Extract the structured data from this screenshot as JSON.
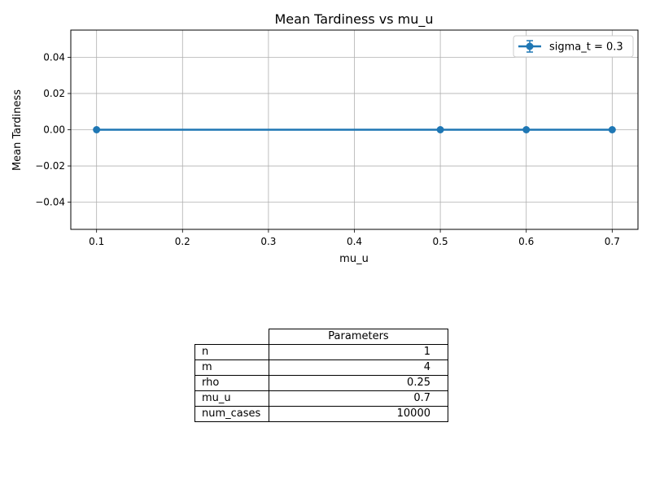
{
  "chart_data": {
    "type": "line",
    "title": "Mean Tardiness vs mu_u",
    "xlabel": "mu_u",
    "ylabel": "Mean Tardiness",
    "xlim": [
      0.07,
      0.73
    ],
    "ylim": [
      -0.055,
      0.055
    ],
    "xticks": [
      0.1,
      0.2,
      0.3,
      0.4,
      0.5,
      0.6,
      0.7
    ],
    "xtick_labels": [
      "0.1",
      "0.2",
      "0.3",
      "0.4",
      "0.5",
      "0.6",
      "0.7"
    ],
    "yticks": [
      0.04,
      0.02,
      0.0,
      -0.02,
      -0.04
    ],
    "ytick_labels": [
      "0.04",
      "0.02",
      "0.00",
      "−0.02",
      "−0.04"
    ],
    "grid": true,
    "legend_position": "top-right",
    "series": [
      {
        "name": "sigma_t = 0.3",
        "color": "#1f77b4",
        "marker": "circle",
        "error_bars": true,
        "x": [
          0.1,
          0.5,
          0.6,
          0.7
        ],
        "y": [
          0.0,
          0.0,
          0.0,
          0.0
        ]
      }
    ]
  },
  "table": {
    "header": "Parameters",
    "rows": [
      {
        "label": "n",
        "value": "1"
      },
      {
        "label": "m",
        "value": "4"
      },
      {
        "label": "rho",
        "value": "0.25"
      },
      {
        "label": "mu_u",
        "value": "0.7"
      },
      {
        "label": "num_cases",
        "value": "10000"
      }
    ]
  }
}
